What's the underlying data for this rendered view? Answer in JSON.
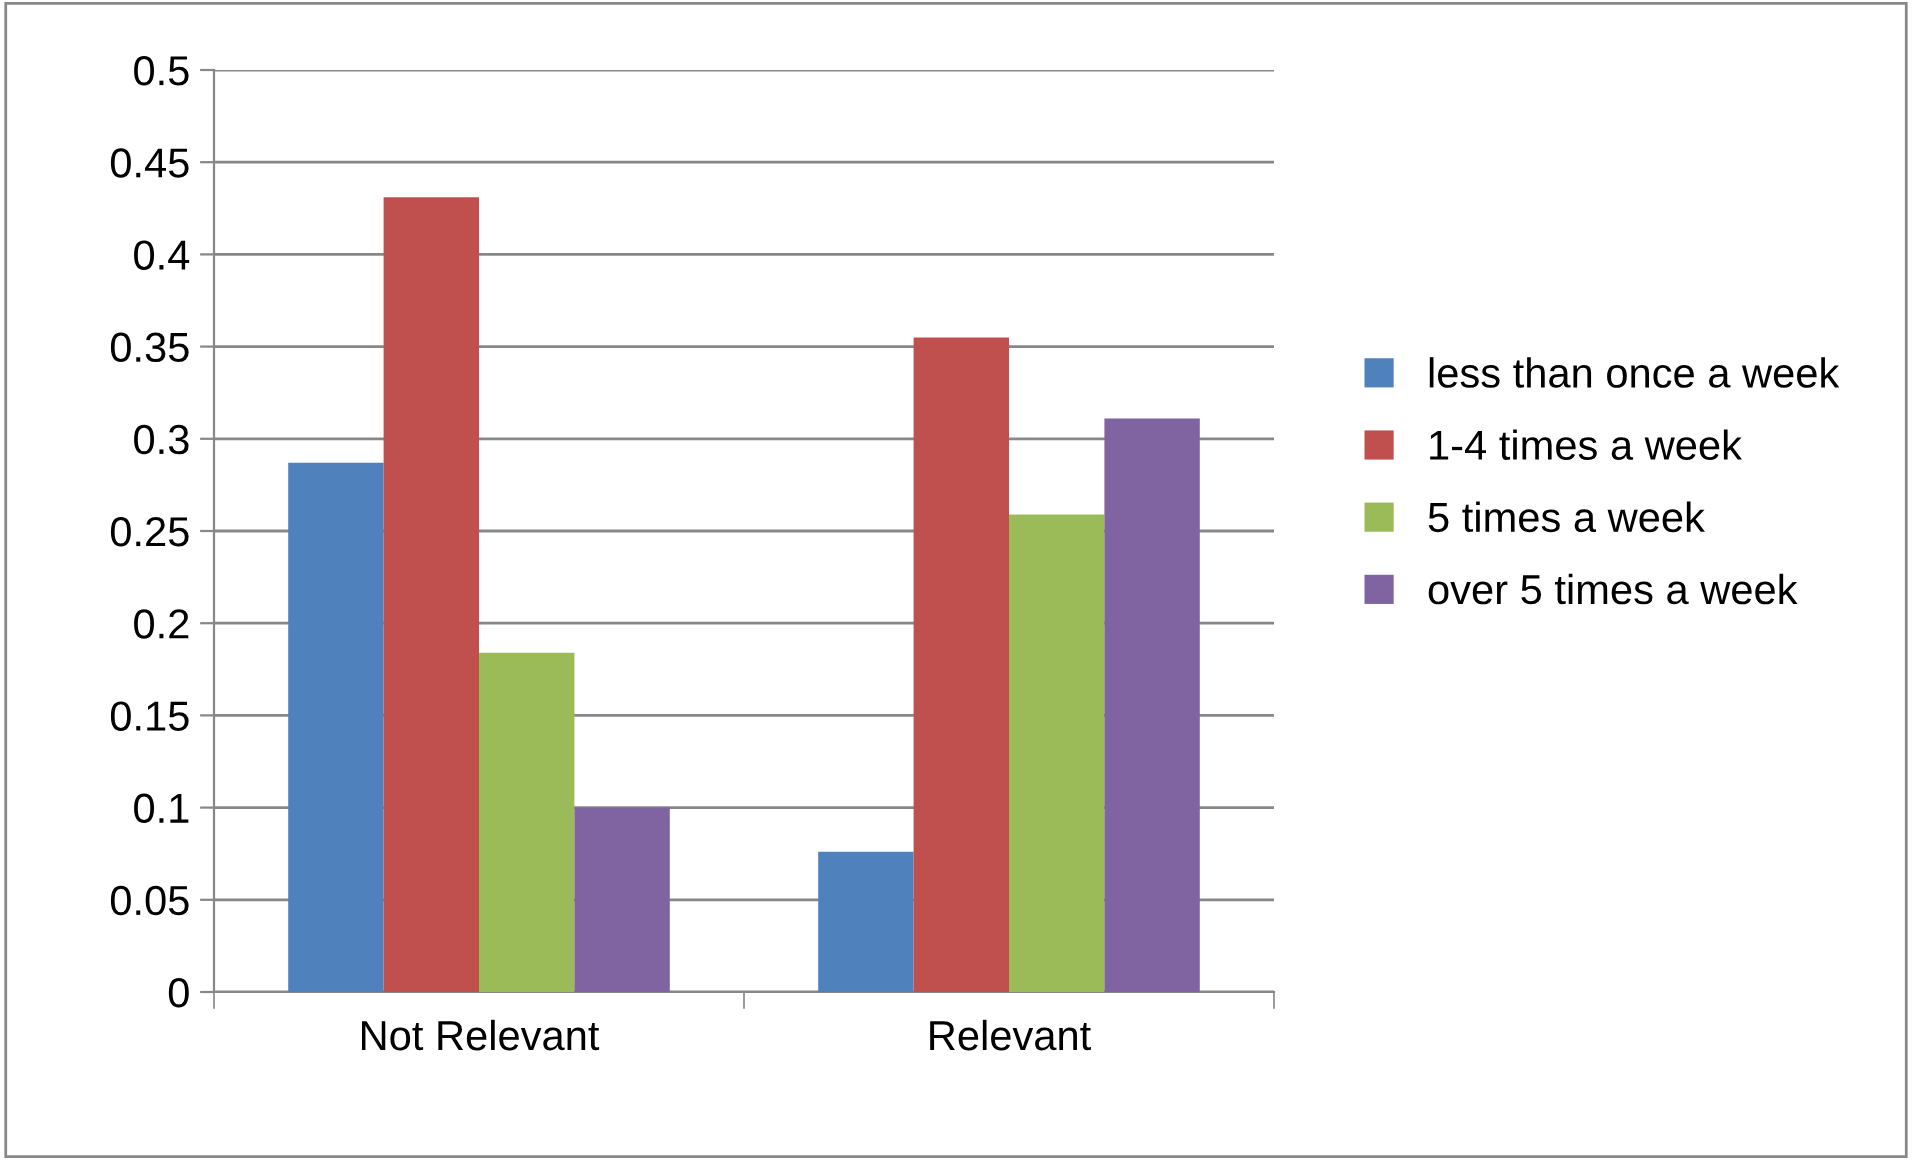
{
  "chart_data": {
    "type": "bar",
    "categories": [
      "Not Relevant",
      "Relevant"
    ],
    "series": [
      {
        "name": "less than once a week",
        "color": "#4f81bd",
        "values": [
          0.287,
          0.076
        ]
      },
      {
        "name": "1-4 times a week",
        "color": "#c0504d",
        "values": [
          0.431,
          0.355
        ]
      },
      {
        "name": "5 times a week",
        "color": "#9bbb59",
        "values": [
          0.184,
          0.259
        ]
      },
      {
        "name": "over 5 times a week",
        "color": "#8064a2",
        "values": [
          0.1,
          0.311
        ]
      }
    ],
    "ylim": [
      0,
      0.5
    ],
    "yticks": [
      0,
      0.05,
      0.1,
      0.15,
      0.2,
      0.25,
      0.3,
      0.35,
      0.4,
      0.45,
      0.5
    ],
    "grid": "y",
    "legend": "right"
  }
}
